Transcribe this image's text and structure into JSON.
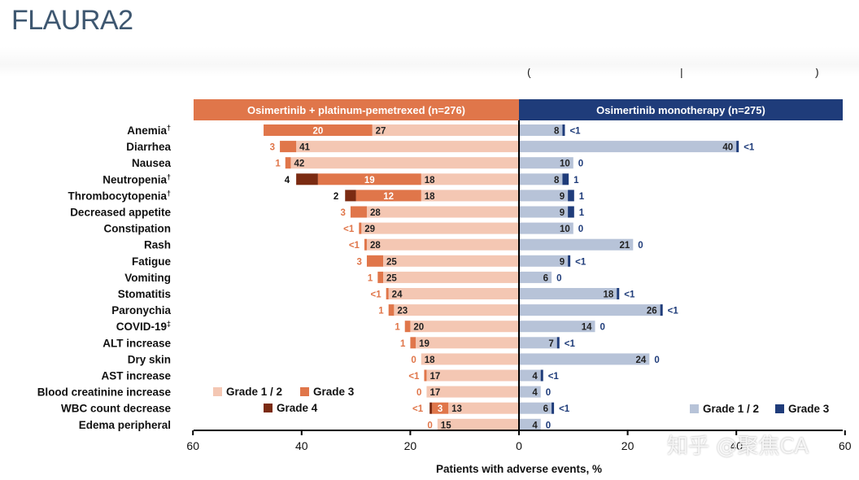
{
  "page": {
    "title": "FLAURA2",
    "watermark": "知乎 @聚焦CA"
  },
  "colors": {
    "left_header": "#e0764a",
    "right_header": "#1f3c7a",
    "grade12_left": "#f4c7b3",
    "grade3_left": "#e0764a",
    "grade4_left": "#7b2b12",
    "grade12_right": "#b7c3d8",
    "grade3_right": "#1f3c7a",
    "label_left_text": "#e0764a",
    "label_right_text": "#1f3c7a"
  },
  "chart_data": {
    "type": "bar",
    "orientation": "horizontal-butterfly",
    "left_group": "Osimertinib + platinum-pemetrexed (n=276)",
    "right_group": "Osimertinib monotherapy (n=275)",
    "xlabel": "Patients with adverse events, %",
    "xlim": [
      -60,
      60
    ],
    "xticks": [
      "60",
      "40",
      "20",
      "0",
      "20",
      "40",
      "60"
    ],
    "xtick_values": [
      -60,
      -40,
      -20,
      0,
      20,
      40,
      60
    ],
    "legend_left": [
      "Grade 1 / 2",
      "Grade 3",
      "Grade 4"
    ],
    "legend_right": [
      "Grade 1 / 2",
      "Grade 3"
    ],
    "rows": [
      {
        "label": "Anemia",
        "sup": "†",
        "left": {
          "g12": 27,
          "g3": 20,
          "g4": 0,
          "g12_label": "27",
          "g3_label": "20",
          "g4_label": ""
        },
        "right": {
          "g12": 8,
          "g3": 0.5,
          "g12_label": "8",
          "g3_label": "<1"
        }
      },
      {
        "label": "Diarrhea",
        "sup": "",
        "left": {
          "g12": 41,
          "g3": 3,
          "g4": 0,
          "g12_label": "41",
          "g3_label": "3",
          "g4_label": ""
        },
        "right": {
          "g12": 40,
          "g3": 0.5,
          "g12_label": "40",
          "g3_label": "<1"
        }
      },
      {
        "label": "Nausea",
        "sup": "",
        "left": {
          "g12": 42,
          "g3": 1,
          "g4": 0,
          "g12_label": "42",
          "g3_label": "1",
          "g4_label": ""
        },
        "right": {
          "g12": 10,
          "g3": 0,
          "g12_label": "10",
          "g3_label": "0"
        }
      },
      {
        "label": "Neutropenia",
        "sup": "†",
        "left": {
          "g12": 18,
          "g3": 19,
          "g4": 4,
          "g12_label": "18",
          "g3_label": "19",
          "g4_label": "4"
        },
        "right": {
          "g12": 8,
          "g3": 1,
          "g12_label": "8",
          "g3_label": "1"
        }
      },
      {
        "label": "Thrombocytopenia",
        "sup": "†",
        "left": {
          "g12": 18,
          "g3": 12,
          "g4": 2,
          "g12_label": "18",
          "g3_label": "12",
          "g4_label": "2"
        },
        "right": {
          "g12": 9,
          "g3": 1,
          "g12_label": "9",
          "g3_label": "1"
        }
      },
      {
        "label": "Decreased appetite",
        "sup": "",
        "left": {
          "g12": 28,
          "g3": 3,
          "g4": 0,
          "g12_label": "28",
          "g3_label": "3",
          "g4_label": ""
        },
        "right": {
          "g12": 9,
          "g3": 1,
          "g12_label": "9",
          "g3_label": "1"
        }
      },
      {
        "label": "Constipation",
        "sup": "",
        "left": {
          "g12": 29,
          "g3": 0.5,
          "g4": 0,
          "g12_label": "29",
          "g3_label": "<1",
          "g4_label": ""
        },
        "right": {
          "g12": 10,
          "g3": 0,
          "g12_label": "10",
          "g3_label": "0"
        }
      },
      {
        "label": "Rash",
        "sup": "",
        "left": {
          "g12": 28,
          "g3": 0.5,
          "g4": 0,
          "g12_label": "28",
          "g3_label": "<1",
          "g4_label": ""
        },
        "right": {
          "g12": 21,
          "g3": 0,
          "g12_label": "21",
          "g3_label": "0"
        }
      },
      {
        "label": "Fatigue",
        "sup": "",
        "left": {
          "g12": 25,
          "g3": 3,
          "g4": 0,
          "g12_label": "25",
          "g3_label": "3",
          "g4_label": ""
        },
        "right": {
          "g12": 9,
          "g3": 0.5,
          "g12_label": "9",
          "g3_label": "<1"
        }
      },
      {
        "label": "Vomiting",
        "sup": "",
        "left": {
          "g12": 25,
          "g3": 1,
          "g4": 0,
          "g12_label": "25",
          "g3_label": "1",
          "g4_label": ""
        },
        "right": {
          "g12": 6,
          "g3": 0,
          "g12_label": "6",
          "g3_label": "0"
        }
      },
      {
        "label": "Stomatitis",
        "sup": "",
        "left": {
          "g12": 24,
          "g3": 0.5,
          "g4": 0,
          "g12_label": "24",
          "g3_label": "<1",
          "g4_label": ""
        },
        "right": {
          "g12": 18,
          "g3": 0.5,
          "g12_label": "18",
          "g3_label": "<1"
        }
      },
      {
        "label": "Paronychia",
        "sup": "",
        "left": {
          "g12": 23,
          "g3": 1,
          "g4": 0,
          "g12_label": "23",
          "g3_label": "1",
          "g4_label": ""
        },
        "right": {
          "g12": 26,
          "g3": 0.5,
          "g12_label": "26",
          "g3_label": "<1"
        }
      },
      {
        "label": "COVID-19",
        "sup": "‡",
        "left": {
          "g12": 20,
          "g3": 1,
          "g4": 0,
          "g12_label": "20",
          "g3_label": "1",
          "g4_label": ""
        },
        "right": {
          "g12": 14,
          "g3": 0,
          "g12_label": "14",
          "g3_label": "0"
        }
      },
      {
        "label": "ALT increase",
        "sup": "",
        "left": {
          "g12": 19,
          "g3": 1,
          "g4": 0,
          "g12_label": "19",
          "g3_label": "1",
          "g4_label": ""
        },
        "right": {
          "g12": 7,
          "g3": 0.5,
          "g12_label": "7",
          "g3_label": "<1"
        }
      },
      {
        "label": "Dry skin",
        "sup": "",
        "left": {
          "g12": 18,
          "g3": 0,
          "g4": 0,
          "g12_label": "18",
          "g3_label": "0",
          "g4_label": ""
        },
        "right": {
          "g12": 24,
          "g3": 0,
          "g12_label": "24",
          "g3_label": "0"
        }
      },
      {
        "label": "AST increase",
        "sup": "",
        "left": {
          "g12": 17,
          "g3": 0.5,
          "g4": 0,
          "g12_label": "17",
          "g3_label": "<1",
          "g4_label": ""
        },
        "right": {
          "g12": 4,
          "g3": 0.5,
          "g12_label": "4",
          "g3_label": "<1"
        }
      },
      {
        "label": "Blood creatinine increase",
        "sup": "",
        "left": {
          "g12": 17,
          "g3": 0,
          "g4": 0,
          "g12_label": "17",
          "g3_label": "0",
          "g4_label": ""
        },
        "right": {
          "g12": 4,
          "g3": 0,
          "g12_label": "4",
          "g3_label": "0"
        }
      },
      {
        "label": "WBC count decrease",
        "sup": "",
        "left": {
          "g12": 13,
          "g3": 3,
          "g4": 0.5,
          "g12_label": "13",
          "g3_label": "3",
          "g4_label": "<1"
        },
        "right": {
          "g12": 6,
          "g3": 0.5,
          "g12_label": "6",
          "g3_label": "<1"
        }
      },
      {
        "label": "Edema peripheral",
        "sup": "",
        "left": {
          "g12": 15,
          "g3": 0,
          "g4": 0,
          "g12_label": "15",
          "g3_label": "0",
          "g4_label": ""
        },
        "right": {
          "g12": 4,
          "g3": 0,
          "g12_label": "4",
          "g3_label": "0"
        }
      }
    ]
  }
}
